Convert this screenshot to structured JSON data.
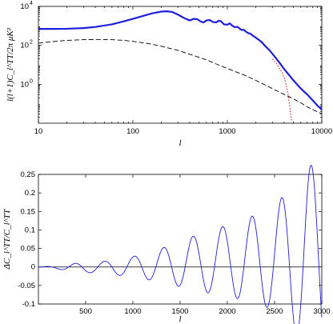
{
  "chart_data": [
    {
      "type": "line",
      "xscale": "log",
      "yscale": "log",
      "xlim": [
        10,
        10000
      ],
      "ylim": [
        0.01,
        10000
      ],
      "xlabel": "l",
      "ylabel": "l(l+1)C_l^TT/2π μK²",
      "x_ticks": [
        {
          "value": 10,
          "label": "10"
        },
        {
          "value": 100,
          "label": "100"
        },
        {
          "value": 1000,
          "label": "1000"
        },
        {
          "value": 10000,
          "label": "10000"
        }
      ],
      "y_ticks": [
        {
          "value": 1,
          "label": "10",
          "exp": "0"
        },
        {
          "value": 100,
          "label": "10",
          "exp": "2"
        },
        {
          "value": 10000,
          "label": "10",
          "exp": "4"
        }
      ],
      "series": [
        {
          "color": "#1f1fdc",
          "style": "solid-thick",
          "points": [
            [
              10,
              700
            ],
            [
              15,
              700
            ],
            [
              20,
              710
            ],
            [
              30,
              770
            ],
            [
              40,
              880
            ],
            [
              60,
              1200
            ],
            [
              80,
              1700
            ],
            [
              100,
              2300
            ],
            [
              130,
              3300
            ],
            [
              160,
              4400
            ],
            [
              200,
              5400
            ],
            [
              230,
              5600
            ],
            [
              260,
              5200
            ],
            [
              300,
              3800
            ],
            [
              350,
              2500
            ],
            [
              400,
              1900
            ],
            [
              440,
              2300
            ],
            [
              480,
              2200
            ],
            [
              520,
              1700
            ],
            [
              560,
              1500
            ],
            [
              600,
              1900
            ],
            [
              650,
              2000
            ],
            [
              700,
              1600
            ],
            [
              760,
              1500
            ],
            [
              810,
              1850
            ],
            [
              860,
              1700
            ],
            [
              920,
              1200
            ],
            [
              1000,
              1150
            ],
            [
              1060,
              1350
            ],
            [
              1120,
              1050
            ],
            [
              1200,
              850
            ],
            [
              1280,
              900
            ],
            [
              1350,
              720
            ],
            [
              1420,
              620
            ],
            [
              1500,
              620
            ],
            [
              1580,
              500
            ],
            [
              1650,
              430
            ],
            [
              1750,
              400
            ],
            [
              1850,
              320
            ],
            [
              1950,
              270
            ],
            [
              2100,
              210
            ],
            [
              2300,
              150
            ],
            [
              2500,
              95
            ],
            [
              2800,
              55
            ],
            [
              3200,
              25
            ],
            [
              3600,
              12
            ],
            [
              4000,
              6
            ],
            [
              4500,
              3
            ],
            [
              5000,
              1.6
            ],
            [
              6000,
              0.6
            ],
            [
              7000,
              0.3
            ],
            [
              8000,
              0.15
            ],
            [
              9000,
              0.08
            ],
            [
              10000,
              0.05
            ]
          ]
        },
        {
          "color": "#000000",
          "style": "dashed",
          "points": [
            [
              10,
              130
            ],
            [
              15,
              160
            ],
            [
              20,
              180
            ],
            [
              30,
              195
            ],
            [
              40,
              200
            ],
            [
              60,
              195
            ],
            [
              80,
              180
            ],
            [
              100,
              160
            ],
            [
              150,
              120
            ],
            [
              200,
              90
            ],
            [
              300,
              55
            ],
            [
              400,
              35
            ],
            [
              600,
              18
            ],
            [
              800,
              10
            ],
            [
              1000,
              6.5
            ],
            [
              1500,
              3
            ],
            [
              2000,
              1.6
            ],
            [
              3000,
              0.6
            ],
            [
              4000,
              0.3
            ],
            [
              5000,
              0.18
            ],
            [
              6000,
              0.11
            ],
            [
              7000,
              0.07
            ],
            [
              8000,
              0.05
            ],
            [
              10000,
              0.03
            ]
          ]
        },
        {
          "color": "#d62020",
          "style": "dotted",
          "points": [
            [
              3000,
              20
            ],
            [
              3400,
              10
            ],
            [
              3800,
              4
            ],
            [
              4100,
              1.5
            ],
            [
              4400,
              0.3
            ],
            [
              4600,
              0.06
            ],
            [
              4800,
              0.012
            ]
          ]
        }
      ]
    },
    {
      "type": "line",
      "xlim": [
        0,
        3000
      ],
      "ylim": [
        -0.1,
        0.25
      ],
      "xlabel": "l",
      "ylabel": "ΔC_l^TT/C_l^TT",
      "x_ticks": [
        500,
        1000,
        1500,
        2000,
        2500,
        3000
      ],
      "y_ticks": [
        -0.1,
        -0.05,
        0,
        0.05,
        0.1,
        0.15,
        0.2,
        0.25
      ],
      "zero_line": true,
      "series": [
        {
          "color": "#1f1fdc",
          "style": "solid-thin",
          "osc_period": 312,
          "osc_phase_l": 390,
          "envelope": [
            [
              0,
              0
            ],
            [
              200,
              0.004
            ],
            [
              400,
              0.012
            ],
            [
              700,
              0.016
            ],
            [
              1000,
              0.028
            ],
            [
              1300,
              0.045
            ],
            [
              1600,
              0.07
            ],
            [
              1900,
              0.09
            ],
            [
              2200,
              0.11
            ],
            [
              2500,
              0.14
            ],
            [
              2850,
              0.245
            ],
            [
              3000,
              0.25
            ]
          ],
          "offset": [
            [
              0,
              0
            ],
            [
              400,
              -0.002
            ],
            [
              1000,
              0.0
            ],
            [
              1600,
              0.01
            ],
            [
              2200,
              0.02
            ],
            [
              3000,
              0.03
            ]
          ]
        }
      ]
    }
  ]
}
